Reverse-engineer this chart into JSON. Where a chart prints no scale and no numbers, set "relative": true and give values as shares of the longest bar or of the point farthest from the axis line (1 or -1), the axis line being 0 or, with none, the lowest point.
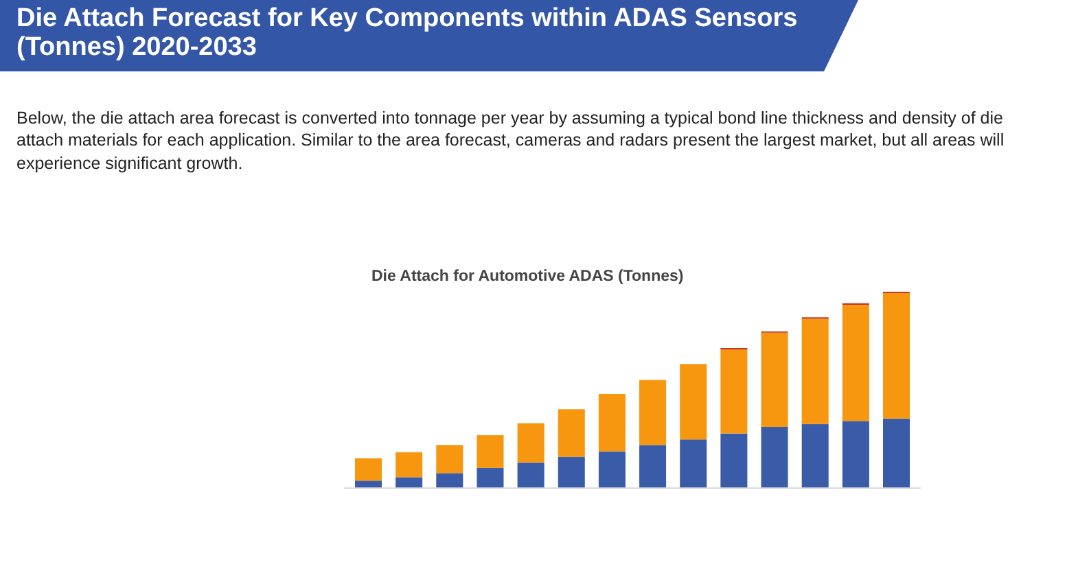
{
  "chart_data": {
    "type": "bar",
    "stacked": true,
    "relative": true,
    "title": "Die Attach Forecast for Key Components within ADAS Sensors (Tonnes) 2020-2033",
    "subtitle": "Below, the die attach area forecast is converted into tonnage per year by assuming a typical bond line thickness and density of die attach materials for each application. Similar to the area forecast, cameras and radars present the largest market, but all areas will experience significant growth.",
    "annotations": [
      "Die Attach for Automotive ADAS (Tonnes)"
    ],
    "categories": [
      null,
      null,
      null,
      null,
      null,
      null,
      null,
      null,
      null,
      null,
      null,
      null,
      null,
      null
    ],
    "series": [
      {
        "color": "#3a5ca8",
        "values": [
          0.038,
          0.055,
          0.076,
          0.102,
          0.13,
          0.159,
          0.187,
          0.219,
          0.247,
          0.278,
          0.311,
          0.326,
          0.342,
          0.354
        ]
      },
      {
        "color": "#f7960f",
        "values": [
          0.114,
          0.128,
          0.143,
          0.167,
          0.2,
          0.242,
          0.292,
          0.332,
          0.385,
          0.428,
          0.48,
          0.537,
          0.592,
          0.639
        ]
      },
      {
        "color": "#c0392b",
        "values": [
          0,
          0,
          0,
          0,
          0,
          0,
          0,
          0,
          0,
          0.007,
          0.007,
          0.007,
          0.007,
          0.007
        ]
      }
    ]
  }
}
